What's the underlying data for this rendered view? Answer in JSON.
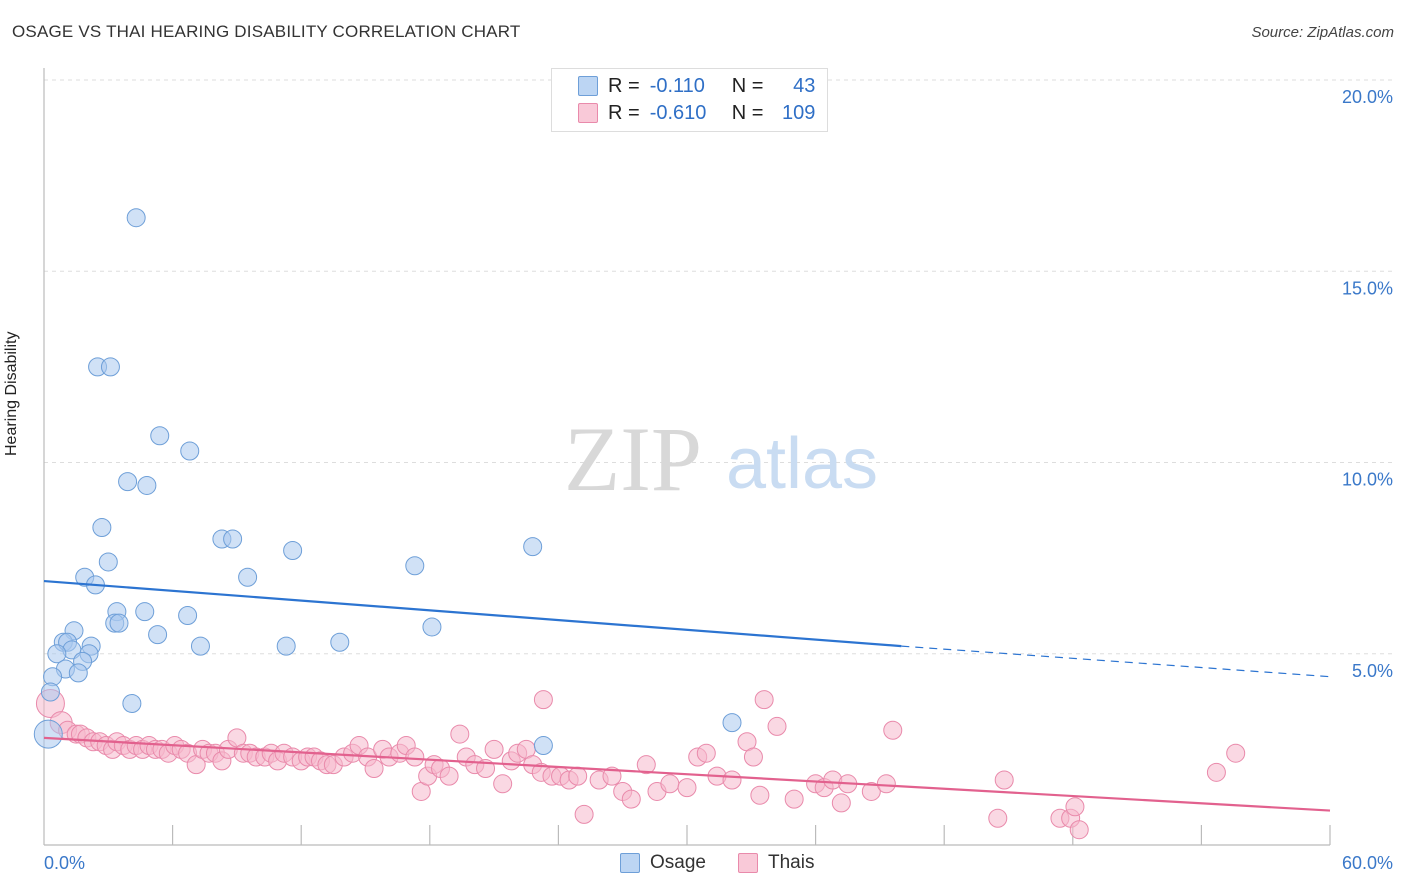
{
  "title": "OSAGE VS THAI HEARING DISABILITY CORRELATION CHART",
  "source": "Source: ZipAtlas.com",
  "watermark": {
    "zip": "ZIP",
    "atlas": "atlas"
  },
  "colors": {
    "osage_fill": "#a9c9ef",
    "osage_stroke": "#6e9fd8",
    "osage_line": "#2c74d1",
    "thai_fill": "#f6b8cc",
    "thai_stroke": "#e98aab",
    "thai_line": "#e2618e",
    "tick_text": "#3a78c9",
    "grid": "#dddddd"
  },
  "legend_top": {
    "rows": [
      {
        "r_label": "R =",
        "r_value": "-0.110",
        "n_label": "N =",
        "n_value": "43"
      },
      {
        "r_label": "R =",
        "r_value": "-0.610",
        "n_label": "N =",
        "n_value": "109"
      }
    ]
  },
  "legend_bottom": [
    "Osage",
    "Thais"
  ],
  "chart_data": {
    "type": "scatter",
    "xlabel": "",
    "ylabel": "Hearing Disability",
    "xlim": [
      0,
      60
    ],
    "ylim": [
      0,
      20
    ],
    "x_tick_labels": [
      "0.0%",
      "60.0%"
    ],
    "y_tick_values": [
      5,
      10,
      15,
      20
    ],
    "y_tick_labels": [
      "5.0%",
      "10.0%",
      "15.0%",
      "20.0%"
    ],
    "grid": "horizontal dashed",
    "series": [
      {
        "name": "Osage",
        "r": -0.11,
        "n": 43,
        "trend": {
          "x0": 0,
          "y0": 6.9,
          "x1": 40,
          "y1": 5.2,
          "dash_to_x": 60,
          "dash_to_y": 4.4
        },
        "points": [
          [
            4.3,
            16.4
          ],
          [
            2.5,
            12.5
          ],
          [
            3.1,
            12.5
          ],
          [
            5.4,
            10.7
          ],
          [
            6.8,
            10.3
          ],
          [
            3.9,
            9.5
          ],
          [
            4.8,
            9.4
          ],
          [
            2.7,
            8.3
          ],
          [
            8.3,
            8.0
          ],
          [
            8.8,
            8.0
          ],
          [
            11.6,
            7.7
          ],
          [
            17.3,
            7.3
          ],
          [
            22.8,
            7.8
          ],
          [
            3.0,
            7.4
          ],
          [
            1.9,
            7.0
          ],
          [
            2.4,
            6.8
          ],
          [
            9.5,
            7.0
          ],
          [
            3.4,
            6.1
          ],
          [
            4.7,
            6.1
          ],
          [
            6.7,
            6.0
          ],
          [
            3.3,
            5.8
          ],
          [
            3.5,
            5.8
          ],
          [
            5.3,
            5.5
          ],
          [
            18.1,
            5.7
          ],
          [
            1.4,
            5.6
          ],
          [
            0.9,
            5.3
          ],
          [
            1.1,
            5.3
          ],
          [
            2.2,
            5.2
          ],
          [
            1.3,
            5.1
          ],
          [
            2.1,
            5.0
          ],
          [
            0.6,
            5.0
          ],
          [
            7.3,
            5.2
          ],
          [
            11.3,
            5.2
          ],
          [
            13.8,
            5.3
          ],
          [
            1.8,
            4.8
          ],
          [
            1.0,
            4.6
          ],
          [
            1.6,
            4.5
          ],
          [
            0.4,
            4.4
          ],
          [
            0.3,
            4.0
          ],
          [
            4.1,
            3.7
          ],
          [
            32.1,
            3.2
          ],
          [
            23.3,
            2.6
          ],
          [
            0.2,
            2.9
          ]
        ]
      },
      {
        "name": "Thais",
        "r": -0.61,
        "n": 109,
        "trend": {
          "x0": 0,
          "y0": 2.8,
          "x1": 60,
          "y1": 0.9
        },
        "points": [
          [
            0.3,
            3.7
          ],
          [
            0.8,
            3.2
          ],
          [
            1.1,
            3.0
          ],
          [
            1.5,
            2.9
          ],
          [
            1.7,
            2.9
          ],
          [
            2.0,
            2.8
          ],
          [
            2.3,
            2.7
          ],
          [
            2.6,
            2.7
          ],
          [
            2.9,
            2.6
          ],
          [
            3.2,
            2.5
          ],
          [
            3.4,
            2.7
          ],
          [
            3.7,
            2.6
          ],
          [
            4.0,
            2.5
          ],
          [
            4.3,
            2.6
          ],
          [
            4.6,
            2.5
          ],
          [
            4.9,
            2.6
          ],
          [
            5.2,
            2.5
          ],
          [
            5.5,
            2.5
          ],
          [
            5.8,
            2.4
          ],
          [
            6.1,
            2.6
          ],
          [
            6.4,
            2.5
          ],
          [
            6.7,
            2.4
          ],
          [
            7.1,
            2.1
          ],
          [
            7.4,
            2.5
          ],
          [
            7.7,
            2.4
          ],
          [
            8.0,
            2.4
          ],
          [
            8.3,
            2.2
          ],
          [
            8.6,
            2.5
          ],
          [
            9.0,
            2.8
          ],
          [
            9.3,
            2.4
          ],
          [
            9.6,
            2.4
          ],
          [
            9.9,
            2.3
          ],
          [
            10.3,
            2.3
          ],
          [
            10.6,
            2.4
          ],
          [
            10.9,
            2.2
          ],
          [
            11.2,
            2.4
          ],
          [
            11.6,
            2.3
          ],
          [
            12.0,
            2.2
          ],
          [
            12.3,
            2.3
          ],
          [
            12.6,
            2.3
          ],
          [
            12.9,
            2.2
          ],
          [
            13.2,
            2.1
          ],
          [
            13.5,
            2.1
          ],
          [
            14.0,
            2.3
          ],
          [
            14.4,
            2.4
          ],
          [
            14.7,
            2.6
          ],
          [
            15.1,
            2.3
          ],
          [
            15.4,
            2.0
          ],
          [
            15.8,
            2.5
          ],
          [
            16.1,
            2.3
          ],
          [
            16.6,
            2.4
          ],
          [
            16.9,
            2.6
          ],
          [
            17.3,
            2.3
          ],
          [
            17.6,
            1.4
          ],
          [
            17.9,
            1.8
          ],
          [
            18.2,
            2.1
          ],
          [
            18.5,
            2.0
          ],
          [
            18.9,
            1.8
          ],
          [
            19.4,
            2.9
          ],
          [
            19.7,
            2.3
          ],
          [
            20.1,
            2.1
          ],
          [
            20.6,
            2.0
          ],
          [
            21.0,
            2.5
          ],
          [
            21.4,
            1.6
          ],
          [
            21.8,
            2.2
          ],
          [
            22.1,
            2.4
          ],
          [
            22.5,
            2.5
          ],
          [
            22.8,
            2.1
          ],
          [
            23.2,
            1.9
          ],
          [
            23.3,
            3.8
          ],
          [
            23.7,
            1.8
          ],
          [
            24.1,
            1.8
          ],
          [
            24.5,
            1.7
          ],
          [
            24.9,
            1.8
          ],
          [
            25.2,
            0.8
          ],
          [
            25.9,
            1.7
          ],
          [
            26.5,
            1.8
          ],
          [
            27.0,
            1.4
          ],
          [
            27.4,
            1.2
          ],
          [
            28.1,
            2.1
          ],
          [
            28.6,
            1.4
          ],
          [
            29.2,
            1.6
          ],
          [
            30.0,
            1.5
          ],
          [
            30.5,
            2.3
          ],
          [
            30.9,
            2.4
          ],
          [
            31.4,
            1.8
          ],
          [
            32.1,
            1.7
          ],
          [
            32.8,
            2.7
          ],
          [
            33.1,
            2.3
          ],
          [
            33.4,
            1.3
          ],
          [
            33.6,
            3.8
          ],
          [
            34.2,
            3.1
          ],
          [
            35.0,
            1.2
          ],
          [
            36.0,
            1.6
          ],
          [
            36.4,
            1.5
          ],
          [
            36.8,
            1.7
          ],
          [
            37.2,
            1.1
          ],
          [
            37.5,
            1.6
          ],
          [
            38.6,
            1.4
          ],
          [
            39.3,
            1.6
          ],
          [
            39.6,
            3.0
          ],
          [
            44.5,
            0.7
          ],
          [
            44.8,
            1.7
          ],
          [
            47.4,
            0.7
          ],
          [
            47.9,
            0.7
          ],
          [
            48.1,
            1.0
          ],
          [
            48.3,
            0.4
          ],
          [
            54.7,
            1.9
          ],
          [
            55.6,
            2.4
          ]
        ]
      }
    ]
  }
}
